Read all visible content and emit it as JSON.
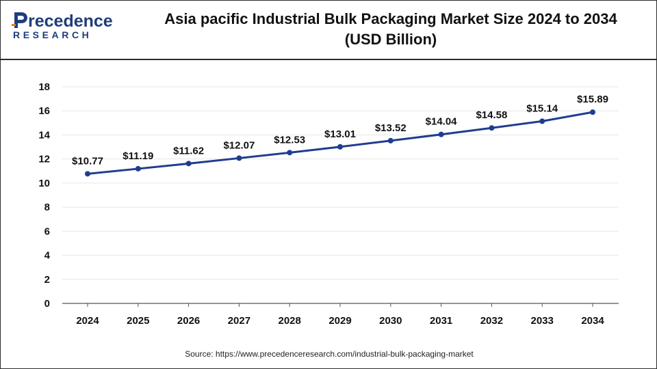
{
  "header": {
    "logo_word": "recedence",
    "logo_sub": "RESEARCH",
    "title_line1": "Asia pacific Industrial Bulk Packaging Market Size 2024 to 2034",
    "title_line2": "(USD Billion)"
  },
  "colors": {
    "line": "#1f3d8f",
    "marker": "#1f3d8f",
    "grid": "#e6e6e6",
    "axis": "#555555",
    "brand": "#1f3d7a"
  },
  "chart_data": {
    "type": "line",
    "title": "Asia pacific Industrial Bulk Packaging Market Size 2024 to 2034 (USD Billion)",
    "xlabel": "",
    "ylabel": "",
    "categories": [
      "2024",
      "2025",
      "2026",
      "2027",
      "2028",
      "2029",
      "2030",
      "2031",
      "2032",
      "2033",
      "2034"
    ],
    "values": [
      10.77,
      11.19,
      11.62,
      12.07,
      12.53,
      13.01,
      13.52,
      14.04,
      14.58,
      15.14,
      15.89
    ],
    "value_labels": [
      "$10.77",
      "$11.19",
      "$11.62",
      "$12.07",
      "$12.53",
      "$13.01",
      "$13.52",
      "$14.04",
      "$14.58",
      "$15.14",
      "$15.89"
    ],
    "ylim": [
      0,
      18
    ],
    "yticks": [
      "0",
      "2",
      "4",
      "6",
      "8",
      "10",
      "12",
      "14",
      "16",
      "18"
    ],
    "grid": true,
    "legend": "none"
  },
  "source": "Source: https://www.precedenceresearch.com/industrial-bulk-packaging-market"
}
